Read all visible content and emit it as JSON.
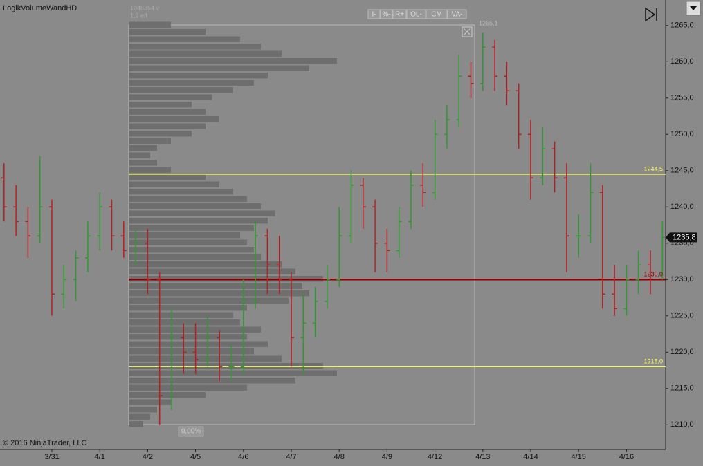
{
  "chart_data": {
    "type": "ohlc",
    "title": "LogikVolumeWandHD",
    "copyright": "© 2016 NinjaTrader, LLC",
    "buttons": [
      "I-",
      "%-",
      "R+",
      "OL-",
      "CM",
      "VA-"
    ],
    "profile_info": [
      "1048354 v",
      "1,2 e/t"
    ],
    "profile_high_label": "1265,1",
    "profile_footer": "0,00%",
    "up_color": "#2f9a2f",
    "down_color": "#b82020",
    "ylim": [
      1206.6,
      1268.5
    ],
    "yticks": [
      {
        "value": 1210,
        "label": "1210,0"
      },
      {
        "value": 1215,
        "label": "1215,0"
      },
      {
        "value": 1220,
        "label": "1220,0"
      },
      {
        "value": 1225,
        "label": "1225,0"
      },
      {
        "value": 1230,
        "label": "1230,0"
      },
      {
        "value": 1235,
        "label": "1235,0"
      },
      {
        "value": 1240,
        "label": "1240,0"
      },
      {
        "value": 1245,
        "label": "1245,0"
      },
      {
        "value": 1250,
        "label": "1250,0"
      },
      {
        "value": 1255,
        "label": "1255,0"
      },
      {
        "value": 1260,
        "label": "1260,0"
      },
      {
        "value": 1265,
        "label": "1265,0"
      }
    ],
    "categories": [
      null,
      null,
      null,
      null,
      "3/31",
      null,
      null,
      null,
      "4/1",
      null,
      null,
      null,
      "4/2",
      null,
      null,
      null,
      "4/5",
      null,
      null,
      null,
      "4/6",
      null,
      null,
      null,
      "4/7",
      null,
      null,
      null,
      "4/8",
      null,
      null,
      null,
      "4/9",
      null,
      null,
      null,
      "4/12",
      null,
      null,
      null,
      "4/13",
      null,
      null,
      null,
      "4/14",
      null,
      null,
      null,
      "4/15",
      null,
      null,
      null,
      "4/16",
      null,
      null,
      null
    ],
    "ohlc": [
      [
        1244,
        1246,
        1238,
        1240
      ],
      [
        1240,
        1243,
        1236,
        1238
      ],
      [
        1238,
        1240,
        1233,
        1236
      ],
      [
        1236,
        1247,
        1235,
        1240
      ],
      [
        1240,
        1241,
        1225,
        1228
      ],
      [
        1228,
        1232,
        1226,
        1230
      ],
      [
        1230,
        1234,
        1227,
        1233
      ],
      [
        1233,
        1238,
        1231,
        1236
      ],
      [
        1236,
        1242,
        1234,
        1240
      ],
      [
        1240,
        1241,
        1234,
        1236
      ],
      [
        1236,
        1238,
        1233,
        1234
      ],
      [
        1234,
        1237,
        1232,
        1235
      ],
      [
        1235,
        1237,
        1228,
        1230
      ],
      [
        1230,
        1231,
        1210,
        1214
      ],
      [
        1214,
        1226,
        1212,
        1222
      ],
      [
        1222,
        1224,
        1217,
        1220
      ],
      [
        1220,
        1224,
        1217,
        1219
      ],
      [
        1219,
        1225,
        1218,
        1222
      ],
      [
        1222,
        1223,
        1216,
        1218
      ],
      [
        1218,
        1221,
        1216,
        1218
      ],
      [
        1218,
        1230,
        1217,
        1227
      ],
      [
        1227,
        1238,
        1226,
        1236
      ],
      [
        1236,
        1237,
        1228,
        1232
      ],
      [
        1232,
        1236,
        1228,
        1230
      ],
      [
        1230,
        1231,
        1218,
        1222
      ],
      [
        1222,
        1228,
        1217,
        1224
      ],
      [
        1224,
        1229,
        1222,
        1227
      ],
      [
        1227,
        1232,
        1226,
        1230
      ],
      [
        1230,
        1240,
        1229,
        1236
      ],
      [
        1236,
        1245,
        1235,
        1243
      ],
      [
        1243,
        1244,
        1237,
        1240
      ],
      [
        1240,
        1241,
        1231,
        1235
      ],
      [
        1235,
        1237,
        1231,
        1234
      ],
      [
        1234,
        1240,
        1233,
        1238
      ],
      [
        1238,
        1245,
        1237,
        1243
      ],
      [
        1243,
        1246,
        1240,
        1242
      ],
      [
        1242,
        1252,
        1241,
        1250
      ],
      [
        1250,
        1254,
        1248,
        1252
      ],
      [
        1252,
        1261,
        1251,
        1258
      ],
      [
        1258,
        1260,
        1255,
        1257
      ],
      [
        1257,
        1264,
        1256,
        1262
      ],
      [
        1262,
        1263,
        1256,
        1258
      ],
      [
        1258,
        1260,
        1254,
        1256
      ],
      [
        1256,
        1257,
        1248,
        1250
      ],
      [
        1250,
        1252,
        1241,
        1244
      ],
      [
        1244,
        1251,
        1243,
        1248
      ],
      [
        1248,
        1249,
        1242,
        1244
      ],
      [
        1244,
        1246,
        1231,
        1236
      ],
      [
        1236,
        1239,
        1233,
        1236
      ],
      [
        1236,
        1246,
        1235,
        1242
      ],
      [
        1242,
        1243,
        1226,
        1228
      ],
      [
        1228,
        1232,
        1225,
        1226
      ],
      [
        1226,
        1232,
        1225,
        1230
      ],
      [
        1230,
        1234,
        1228,
        1232
      ],
      [
        1232,
        1234,
        1228,
        1231
      ],
      [
        1231,
        1238,
        1230,
        1235.8
      ]
    ],
    "profile": {
      "color": "#6e6e6e",
      "levels": [
        1210,
        1211,
        1212,
        1213,
        1214,
        1215,
        1216,
        1217,
        1218,
        1219,
        1220,
        1221,
        1222,
        1223,
        1224,
        1225,
        1226,
        1227,
        1228,
        1229,
        1230,
        1231,
        1232,
        1233,
        1234,
        1235,
        1236,
        1237,
        1238,
        1239,
        1240,
        1241,
        1242,
        1243,
        1244,
        1245,
        1246,
        1247,
        1248,
        1249,
        1250,
        1251,
        1252,
        1253,
        1254,
        1255,
        1256,
        1257,
        1258,
        1259,
        1260,
        1261,
        1262,
        1263,
        1264,
        1265
      ],
      "volumes": [
        20,
        30,
        40,
        60,
        110,
        170,
        240,
        300,
        280,
        220,
        180,
        200,
        170,
        190,
        160,
        150,
        170,
        230,
        260,
        250,
        280,
        240,
        220,
        190,
        180,
        170,
        160,
        180,
        200,
        210,
        190,
        170,
        150,
        130,
        110,
        60,
        40,
        30,
        40,
        60,
        90,
        110,
        130,
        110,
        90,
        120,
        150,
        180,
        200,
        260,
        300,
        220,
        190,
        160,
        110,
        60
      ]
    },
    "levels": [
      {
        "value": 1244.5,
        "label": "1244,5",
        "color": "#ffff66"
      },
      {
        "value": 1230.0,
        "label": "1230,0",
        "color": "#8b0000"
      },
      {
        "value": 1218.0,
        "label": "1218,0",
        "color": "#ffff66"
      }
    ],
    "last": {
      "value": 1235.8,
      "label": "1235,8"
    }
  }
}
